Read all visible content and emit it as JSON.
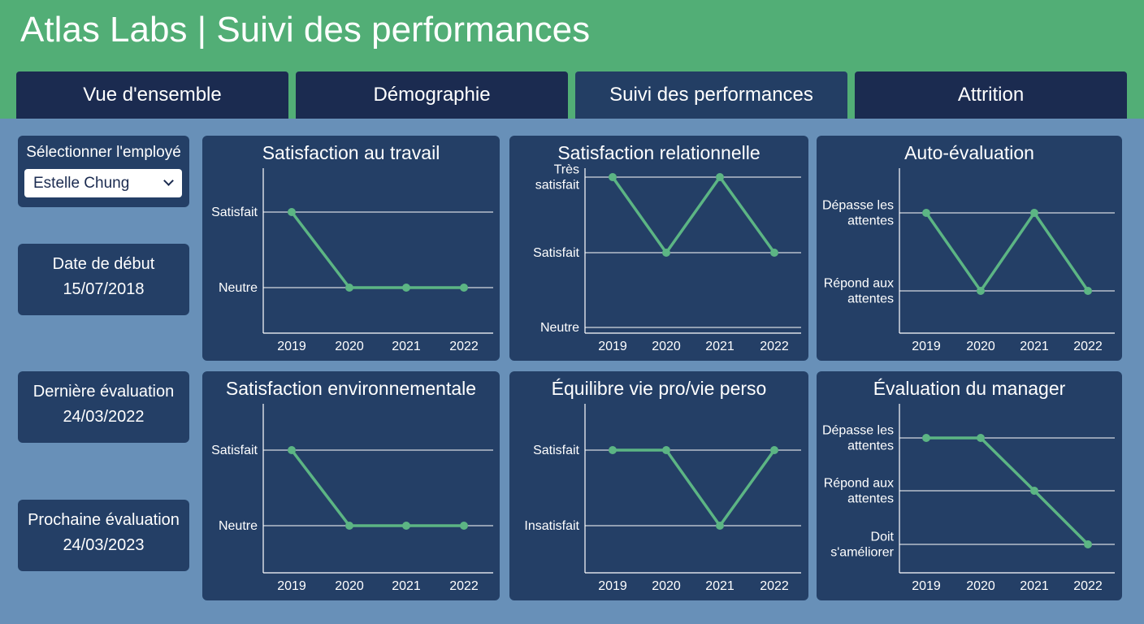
{
  "header": {
    "title": "Atlas Labs | Suivi des performances"
  },
  "tabs": [
    {
      "label": "Vue d'ensemble"
    },
    {
      "label": "Démographie"
    },
    {
      "label": "Suivi des performances"
    },
    {
      "label": "Attrition"
    }
  ],
  "sidebar": {
    "select_label": "Sélectionner l'employé",
    "select_value": "Estelle Chung",
    "start_label": "Date de début",
    "start_value": "15/07/2018",
    "last_label": "Dernière évaluation",
    "last_value": "24/03/2022",
    "next_label": "Prochaine évaluation",
    "next_value": "24/03/2023"
  },
  "colors": {
    "line": "#5cb584",
    "panel": "#243f66",
    "header": "#52ae76",
    "background": "#6890b8"
  },
  "chart_data": [
    {
      "type": "line",
      "title": "Satisfaction au travail",
      "x": [
        "2019",
        "2020",
        "2021",
        "2022"
      ],
      "levels": [
        "Neutre",
        "Satisfait"
      ],
      "values": [
        "Satisfait",
        "Neutre",
        "Neutre",
        "Neutre"
      ]
    },
    {
      "type": "line",
      "title": "Satisfaction relationnelle",
      "x": [
        "2019",
        "2020",
        "2021",
        "2022"
      ],
      "levels": [
        "Neutre",
        "Satisfait",
        "Très satisfait"
      ],
      "values": [
        "Très satisfait",
        "Satisfait",
        "Très satisfait",
        "Satisfait"
      ]
    },
    {
      "type": "line",
      "title": "Auto-évaluation",
      "x": [
        "2019",
        "2020",
        "2021",
        "2022"
      ],
      "levels": [
        "Répond aux attentes",
        "Dépasse les attentes"
      ],
      "values": [
        "Dépasse les attentes",
        "Répond aux attentes",
        "Dépasse les attentes",
        "Répond aux attentes"
      ]
    },
    {
      "type": "line",
      "title": "Satisfaction environnementale",
      "x": [
        "2019",
        "2020",
        "2021",
        "2022"
      ],
      "levels": [
        "Neutre",
        "Satisfait"
      ],
      "values": [
        "Satisfait",
        "Neutre",
        "Neutre",
        "Neutre"
      ]
    },
    {
      "type": "line",
      "title": "Équilibre vie pro/vie perso",
      "x": [
        "2019",
        "2020",
        "2021",
        "2022"
      ],
      "levels": [
        "Insatisfait",
        "Satisfait"
      ],
      "values": [
        "Satisfait",
        "Satisfait",
        "Insatisfait",
        "Satisfait"
      ]
    },
    {
      "type": "line",
      "title": "Évaluation du manager",
      "x": [
        "2019",
        "2020",
        "2021",
        "2022"
      ],
      "levels": [
        "Doit s'améliorer",
        "Répond aux attentes",
        "Dépasse les attentes"
      ],
      "values": [
        "Dépasse les attentes",
        "Dépasse les attentes",
        "Répond aux attentes",
        "Doit s'améliorer"
      ]
    }
  ]
}
